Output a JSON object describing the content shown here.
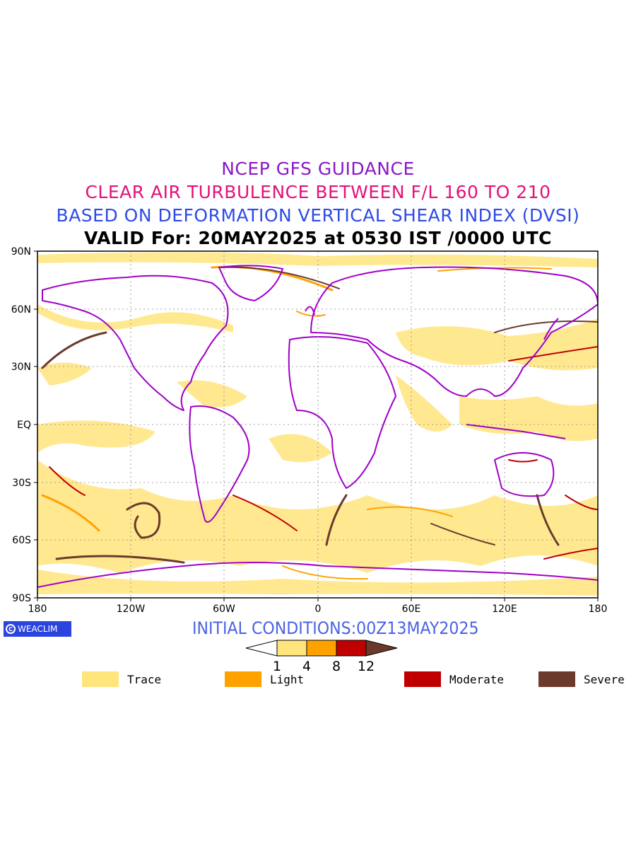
{
  "title": {
    "line1": "NCEP GFS GUIDANCE",
    "line2": "CLEAR AIR TURBULENCE BETWEEN F/L 160 TO 210",
    "line3": "BASED ON DEFORMATION VERTICAL SHEAR INDEX (DVSI)",
    "line4": "VALID For: 20MAY2025 at 0530 IST /0000 UTC"
  },
  "colors": {
    "line1": "#8b18c8",
    "line2": "#e3117a",
    "line3": "#2e4ae6",
    "line4": "#000000",
    "trace": "#ffe57c",
    "light": "#ffa200",
    "moderate": "#c00000",
    "severe": "#6b3a2c",
    "coast": "#a000c8",
    "logo": "#2b44e0",
    "init": "#4a63e6"
  },
  "axes": {
    "lat_labels": [
      "90N",
      "60N",
      "30N",
      "EQ",
      "30S",
      "60S",
      "90S"
    ],
    "lon_labels": [
      "180",
      "120W",
      "60W",
      "0",
      "60E",
      "120E",
      "180"
    ]
  },
  "logo": {
    "icon": "copyright-circle-icon",
    "text": "WEACLIM"
  },
  "initial_conditions": "INITIAL CONDITIONS:00Z13MAY2025",
  "colorbar": {
    "ticks": [
      "1",
      "4",
      "8",
      "12"
    ],
    "levels": [
      1,
      4,
      8,
      12
    ]
  },
  "legend": [
    {
      "label": "Trace",
      "color": "#ffe57c"
    },
    {
      "label": "Light",
      "color": "#ffa200"
    },
    {
      "label": "Moderate",
      "color": "#c00000"
    },
    {
      "label": "Severe",
      "color": "#6b3a2c"
    }
  ]
}
